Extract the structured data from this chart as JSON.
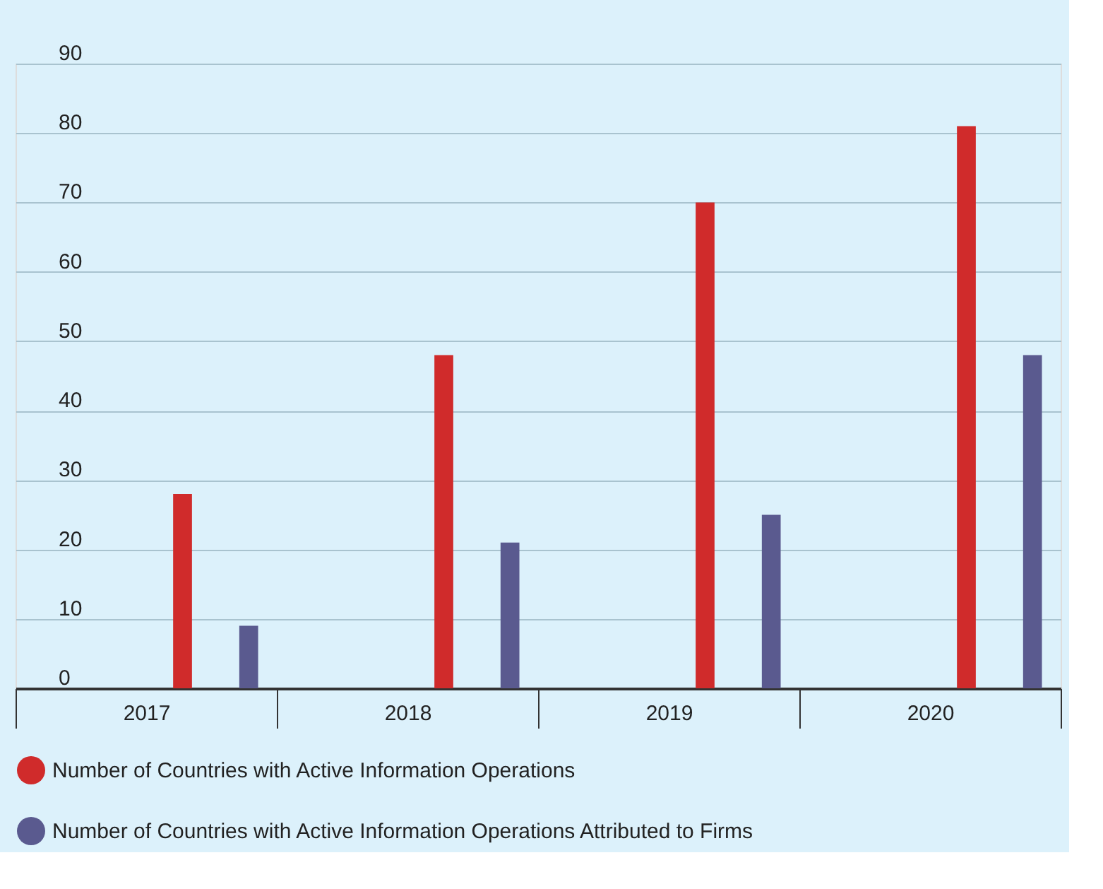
{
  "chart_data": {
    "type": "bar",
    "categories": [
      "2017",
      "2018",
      "2019",
      "2020"
    ],
    "series": [
      {
        "name": "Number of Countries with Active Information Operations",
        "color": "#d02b2b",
        "values": [
          28,
          48,
          70,
          81
        ]
      },
      {
        "name": "Number of Countries with Active Information Operations Attributed to Firms",
        "color": "#5a5a8f",
        "values": [
          9,
          21,
          25,
          48
        ]
      }
    ],
    "ylim": [
      0,
      90
    ],
    "yticks": [
      0,
      10,
      20,
      30,
      40,
      50,
      60,
      70,
      80,
      90
    ],
    "grid": "y",
    "legend": "bottom"
  }
}
